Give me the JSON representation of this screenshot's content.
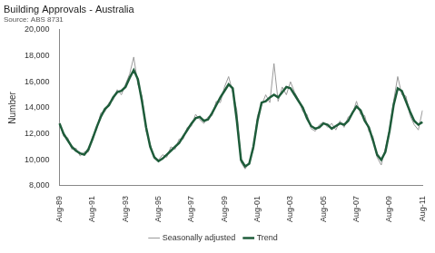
{
  "chart_data": {
    "type": "line",
    "title": "Building Approvals - Australia",
    "subtitle": "Source: ABS 8731",
    "y_label": "Number",
    "categories": [
      "Aug-89",
      null,
      null,
      null,
      null,
      null,
      null,
      null,
      "Aug-91",
      null,
      null,
      null,
      null,
      null,
      null,
      null,
      "Aug-93",
      null,
      null,
      null,
      null,
      null,
      null,
      null,
      "Aug-95",
      null,
      null,
      null,
      null,
      null,
      null,
      null,
      "Aug-97",
      null,
      null,
      null,
      null,
      null,
      null,
      null,
      "Aug-99",
      null,
      null,
      null,
      null,
      null,
      null,
      null,
      "Aug-01",
      null,
      null,
      null,
      null,
      null,
      null,
      null,
      "Aug-03",
      null,
      null,
      null,
      null,
      null,
      null,
      null,
      "Aug-05",
      null,
      null,
      null,
      null,
      null,
      null,
      null,
      "Aug-07",
      null,
      null,
      null,
      null,
      null,
      null,
      null,
      "Aug-09",
      null,
      null,
      null,
      null,
      null,
      null,
      null,
      "Aug-11"
    ],
    "series": [
      {
        "name": "Seasonally adjusted",
        "color": "#9a9a9a",
        "values": [
          12900,
          11800,
          11700,
          10800,
          10900,
          10300,
          10600,
          10600,
          11800,
          12300,
          13600,
          13700,
          14400,
          14600,
          15400,
          15000,
          15800,
          16600,
          17900,
          15800,
          14900,
          12200,
          11200,
          10100,
          10000,
          10400,
          10200,
          11000,
          10800,
          11600,
          11600,
          12500,
          12600,
          13500,
          13100,
          12800,
          13300,
          13400,
          14500,
          14400,
          15600,
          16400,
          15200,
          13800,
          9800,
          9300,
          9800,
          10800,
          13400,
          14200,
          15000,
          14400,
          17400,
          14500,
          15600,
          15000,
          16000,
          15200,
          14600,
          13700,
          13500,
          12400,
          12200,
          12700,
          12900,
          12500,
          12800,
          12300,
          13000,
          12500,
          13300,
          13500,
          14500,
          13500,
          13400,
          12200,
          11800,
          10200,
          9600,
          10900,
          12300,
          14500,
          16400,
          15000,
          14900,
          13400,
          12700,
          12300,
          13800
        ]
      },
      {
        "name": "Trend",
        "color": "#1e5c3a",
        "values": [
          12800,
          12000,
          11500,
          11000,
          10700,
          10500,
          10400,
          10800,
          11600,
          12500,
          13300,
          13900,
          14200,
          14800,
          15200,
          15300,
          15600,
          16300,
          16900,
          16200,
          14500,
          12500,
          11000,
          10200,
          9900,
          10100,
          10400,
          10700,
          11000,
          11300,
          11800,
          12300,
          12800,
          13200,
          13300,
          13000,
          13100,
          13600,
          14200,
          14800,
          15300,
          15800,
          15500,
          13000,
          10000,
          9500,
          9700,
          11000,
          13000,
          14400,
          14500,
          14800,
          15000,
          14800,
          15200,
          15600,
          15500,
          15000,
          14500,
          14000,
          13200,
          12600,
          12400,
          12500,
          12800,
          12700,
          12400,
          12600,
          12800,
          12700,
          13000,
          13600,
          14100,
          13800,
          13000,
          12500,
          11500,
          10400,
          10000,
          10600,
          12200,
          14200,
          15500,
          15300,
          14500,
          13700,
          13000,
          12700,
          12900
        ]
      }
    ],
    "ylim": [
      8000,
      20000
    ],
    "yticks": [
      {
        "value": 8000,
        "label": "8,000"
      },
      {
        "value": 10000,
        "label": "10,000"
      },
      {
        "value": 12000,
        "label": "12,000"
      },
      {
        "value": 14000,
        "label": "14,000"
      },
      {
        "value": 16000,
        "label": "16,000"
      },
      {
        "value": 18000,
        "label": "18,000"
      },
      {
        "value": 20000,
        "label": "20,000"
      }
    ],
    "grid": false,
    "legend": "bottom"
  }
}
